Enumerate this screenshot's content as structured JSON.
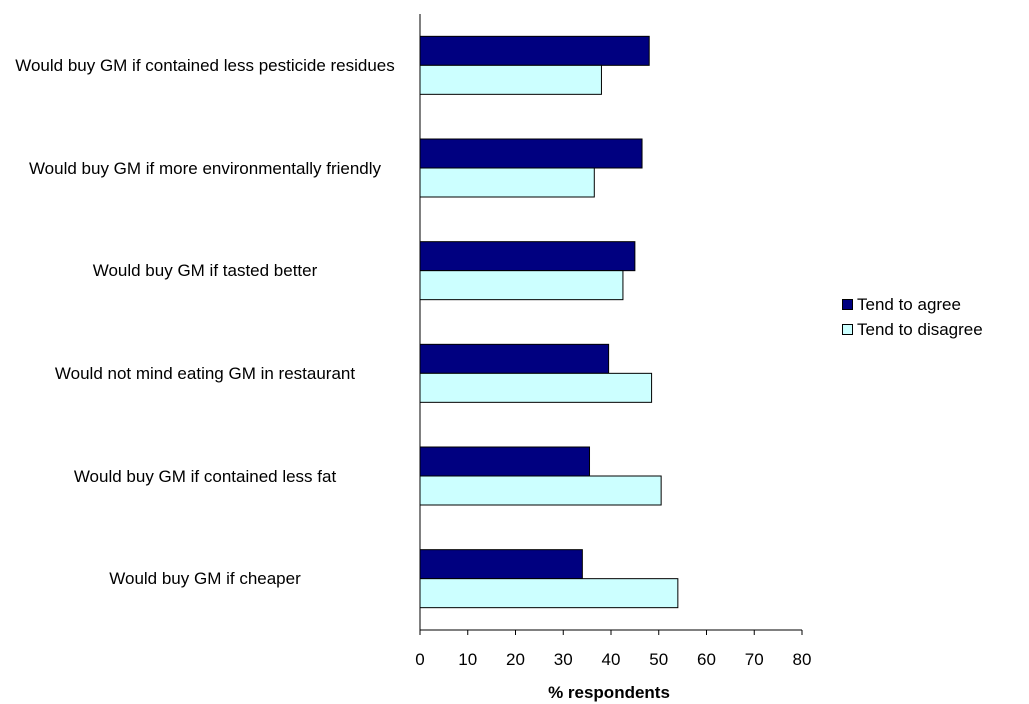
{
  "chart_data": {
    "type": "bar",
    "orientation": "horizontal",
    "categories": [
      "Would buy GM if contained less pesticide residues",
      "Would buy GM if more environmentally friendly",
      "Would buy GM if tasted better",
      "Would not mind eating GM in restaurant",
      "Would buy GM if contained less fat",
      "Would buy GM if cheaper"
    ],
    "series": [
      {
        "name": "Tend to agree",
        "color": "#000080",
        "values": [
          48,
          46.5,
          45,
          39.5,
          35.5,
          34
        ]
      },
      {
        "name": "Tend to disagree",
        "color": "#ccffff",
        "values": [
          38,
          36.5,
          42.5,
          48.5,
          50.5,
          54
        ]
      }
    ],
    "xlabel": "% respondents",
    "ylabel": "",
    "xlim": [
      0,
      80
    ],
    "xticks": [
      0,
      10,
      20,
      30,
      40,
      50,
      60,
      70,
      80
    ],
    "legend_position": "right",
    "grid": false
  }
}
